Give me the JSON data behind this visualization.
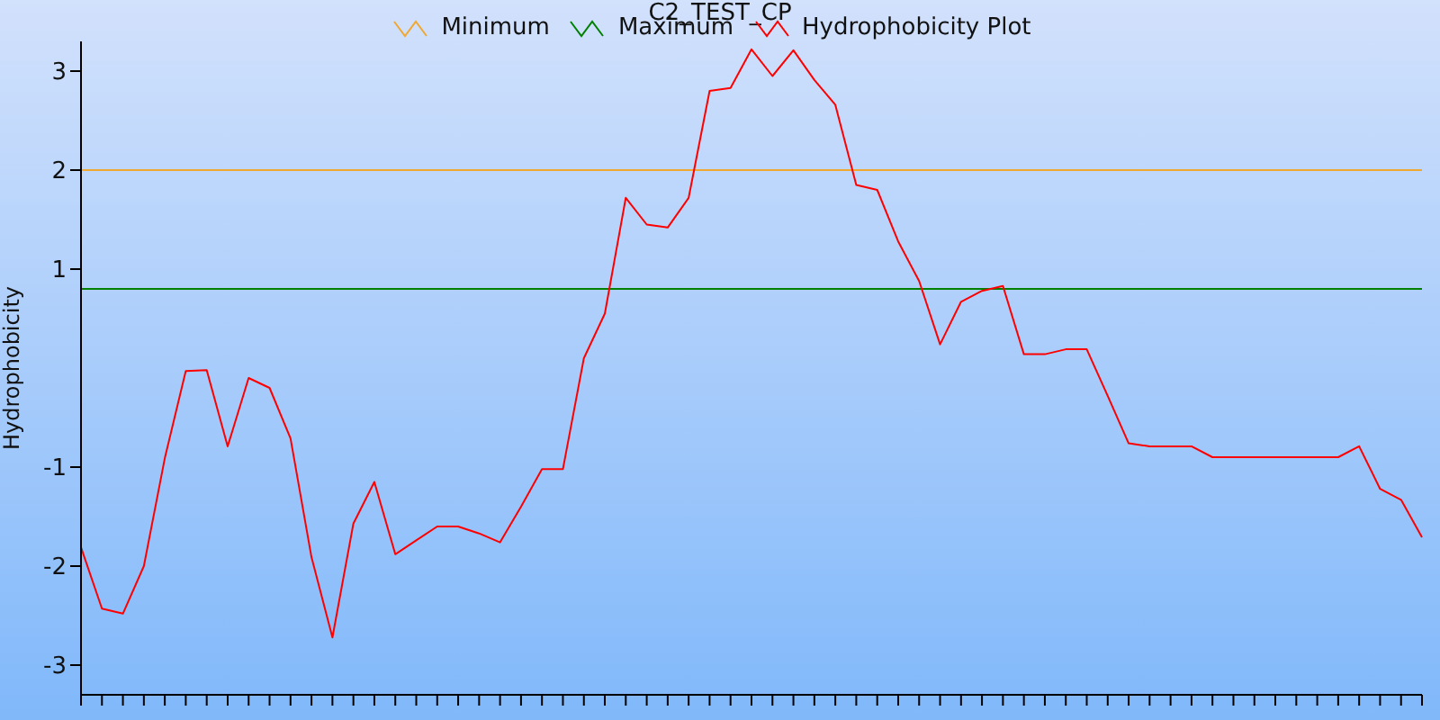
{
  "chart_data": {
    "type": "line",
    "title": "C2_TEST_CP",
    "ylabel": "Hydrophobicity",
    "categories": [
      null,
      null,
      null,
      null,
      null,
      null,
      null,
      null,
      null,
      null,
      null,
      null,
      null,
      null,
      null,
      null,
      null,
      null,
      null,
      null,
      null,
      null,
      null,
      null,
      null,
      null,
      null,
      null,
      null,
      null,
      null,
      null,
      null,
      null,
      null,
      null,
      null,
      null,
      null,
      null,
      null,
      null,
      null,
      null,
      null,
      null,
      null,
      null,
      null,
      null,
      null,
      null,
      null,
      null,
      null,
      null,
      null,
      null,
      null,
      null,
      null,
      null,
      null,
      null,
      null
    ],
    "series": [
      {
        "name": "Minimum",
        "color": "#f0a830",
        "values": [
          2,
          2,
          2,
          2,
          2,
          2,
          2,
          2,
          2,
          2,
          2,
          2,
          2,
          2,
          2,
          2,
          2,
          2,
          2,
          2,
          2,
          2,
          2,
          2,
          2,
          2,
          2,
          2,
          2,
          2,
          2,
          2,
          2,
          2,
          2,
          2,
          2,
          2,
          2,
          2,
          2,
          2,
          2,
          2,
          2,
          2,
          2,
          2,
          2,
          2,
          2,
          2,
          2,
          2,
          2,
          2,
          2,
          2,
          2,
          2,
          2,
          2,
          2,
          2,
          2
        ]
      },
      {
        "name": "Maximum",
        "color": "#008000",
        "values": [
          0.8,
          0.8,
          0.8,
          0.8,
          0.8,
          0.8,
          0.8,
          0.8,
          0.8,
          0.8,
          0.8,
          0.8,
          0.8,
          0.8,
          0.8,
          0.8,
          0.8,
          0.8,
          0.8,
          0.8,
          0.8,
          0.8,
          0.8,
          0.8,
          0.8,
          0.8,
          0.8,
          0.8,
          0.8,
          0.8,
          0.8,
          0.8,
          0.8,
          0.8,
          0.8,
          0.8,
          0.8,
          0.8,
          0.8,
          0.8,
          0.8,
          0.8,
          0.8,
          0.8,
          0.8,
          0.8,
          0.8,
          0.8,
          0.8,
          0.8,
          0.8,
          0.8,
          0.8,
          0.8,
          0.8,
          0.8,
          0.8,
          0.8,
          0.8,
          0.8,
          0.8,
          0.8,
          0.8,
          0.8,
          0.8
        ]
      },
      {
        "name": "Hydrophobicity Plot",
        "color": "#ff0000",
        "values": [
          -1.81,
          -2.43,
          -2.48,
          -2.0,
          -0.91,
          -0.03,
          -0.02,
          -0.79,
          -0.1,
          -0.2,
          -0.71,
          -1.91,
          -2.72,
          -1.57,
          -1.15,
          -1.88,
          -1.74,
          -1.6,
          -1.6,
          -1.67,
          -1.76,
          -1.4,
          -1.02,
          -1.02,
          0.1,
          0.55,
          1.72,
          1.45,
          1.42,
          1.72,
          2.8,
          2.83,
          3.22,
          2.95,
          3.21,
          2.91,
          2.66,
          1.85,
          1.8,
          1.28,
          0.88,
          0.24,
          0.67,
          0.78,
          0.83,
          0.14,
          0.14,
          0.19,
          0.19,
          -0.28,
          -0.76,
          -0.79,
          -0.79,
          -0.79,
          -0.9,
          -0.9,
          -0.9,
          -0.9,
          -0.9,
          -0.9,
          -0.9,
          -0.79,
          -1.22,
          -1.33,
          -1.71
        ]
      }
    ],
    "ylim": [
      -3.3,
      3.3
    ],
    "yticks": [
      -3,
      -2,
      -1,
      1,
      2,
      3
    ],
    "legend": "top",
    "marker": "none",
    "line_style": "solid",
    "tick_labels": "y"
  }
}
